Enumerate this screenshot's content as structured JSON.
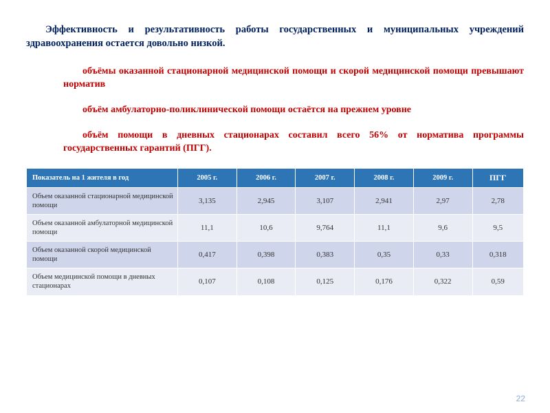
{
  "paragraphs": {
    "title": "Эффективность и результативность работы государственных и муниципальных учреждений здравоохранения остается довольно низкой.",
    "p1": "объёмы оказанной стационарной медицинской помощи и скорой медицинской помощи превышают норматив",
    "p2": "объём амбулаторно-поликлинической помощи остаётся на прежнем уровне",
    "p3": "объём помощи в дневных стационарах составил всего 56% от норматива программы государственных гарантий (ПГГ)."
  },
  "colors": {
    "title_color": "#002060",
    "body_color": "#c00000",
    "th_bg": "#2e75b6",
    "th_fg": "#ffffff",
    "row_even_bg": "#cfd5ea",
    "row_odd_bg": "#e9ebf5",
    "page_num_color": "#8faadc",
    "background": "#ffffff"
  },
  "table": {
    "headers": [
      "Показатель на 1 жителя в год",
      "2005 г.",
      "2006 г.",
      "2007 г.",
      "2008 г.",
      "2009 г.",
      "ПГГ"
    ],
    "rows": [
      {
        "label": "Объем оказанной стационарной медицинской помощи",
        "values": [
          "3,135",
          "2,945",
          "3,107",
          "2,941",
          "2,97",
          "2,78"
        ]
      },
      {
        "label": "Объем оказанной амбулаторной медицинской помощи",
        "values": [
          "11,1",
          "10,6",
          "9,764",
          "11,1",
          "9,6",
          "9,5"
        ]
      },
      {
        "label": "Объем оказанной скорой медицинской помощи",
        "values": [
          "0,417",
          "0,398",
          "0,383",
          "0,35",
          "0,33",
          "0,318"
        ]
      },
      {
        "label": "Объем медицинской помощи в дневных стационарах",
        "values": [
          "0,107",
          "0,108",
          "0,125",
          "0,176",
          "0,322",
          "0,59"
        ]
      }
    ]
  },
  "page_number": "22"
}
